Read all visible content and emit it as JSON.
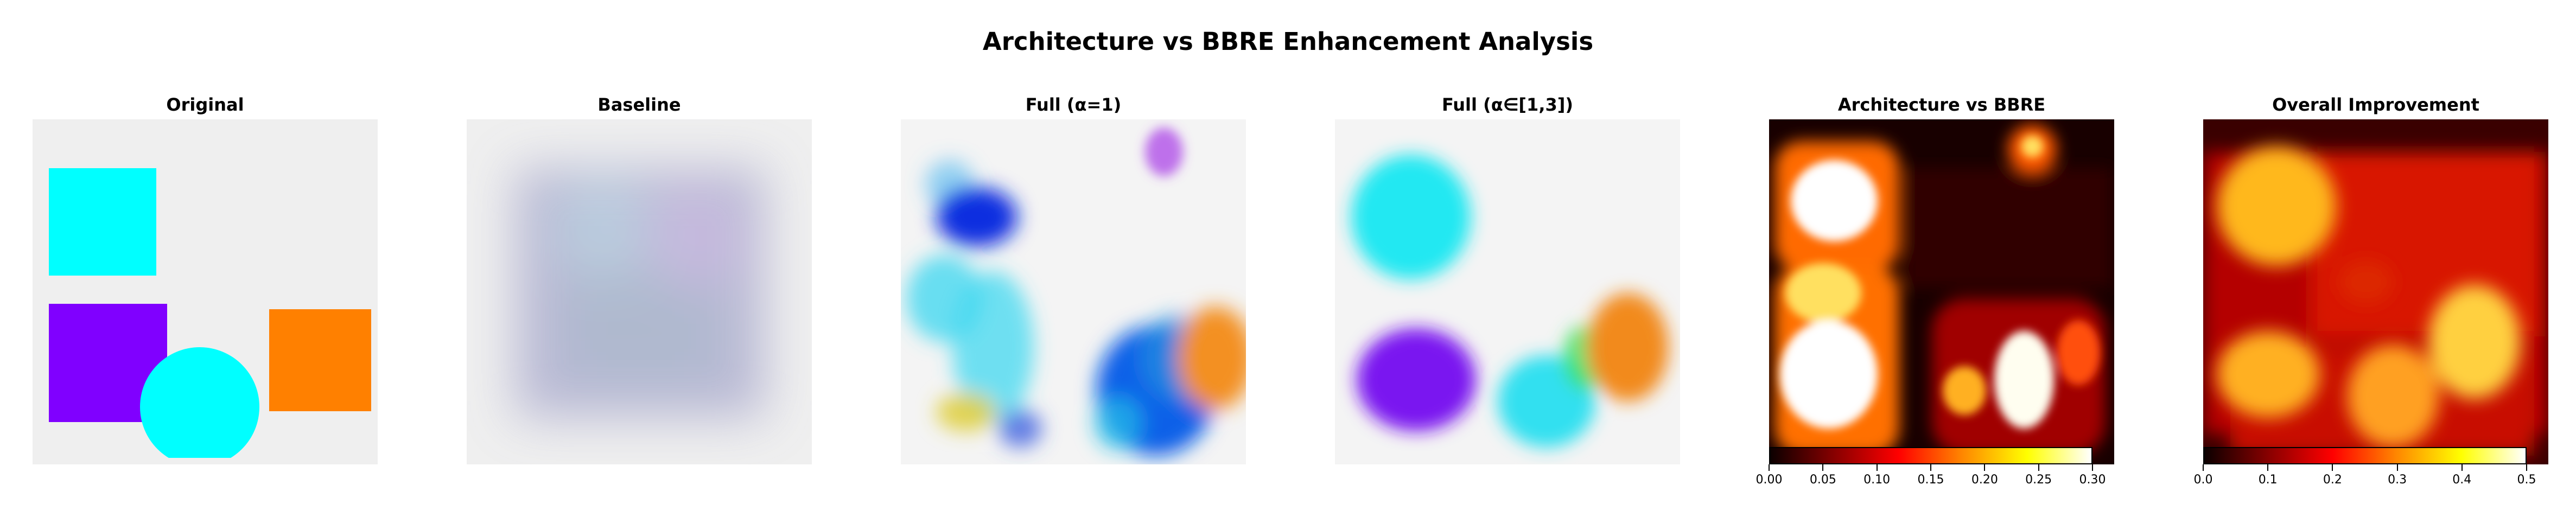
{
  "figure": {
    "title": "Architecture vs BBRE Enhancement Analysis"
  },
  "panels": [
    {
      "title": "Original"
    },
    {
      "title": "Baseline"
    },
    {
      "title": "Full (α=1)"
    },
    {
      "title": "Full (α∈[1,3])"
    },
    {
      "title": "Architecture vs BBRE"
    },
    {
      "title": "Overall Improvement"
    }
  ],
  "colorbars": [
    {
      "colormap": "hot",
      "range": [
        0,
        0.3
      ],
      "ticks": [
        "0.00",
        "0.05",
        "0.10",
        "0.15",
        "0.20",
        "0.25",
        "0.30"
      ]
    },
    {
      "colormap": "hot",
      "range": [
        0,
        0.5
      ],
      "ticks": [
        "0.0",
        "0.1",
        "0.2",
        "0.3",
        "0.4",
        "0.5"
      ]
    }
  ],
  "colors": {
    "cyan": "#00ffff",
    "purple": "#8000ff",
    "orange": "#ff8000",
    "background_gray": "#efefef"
  }
}
